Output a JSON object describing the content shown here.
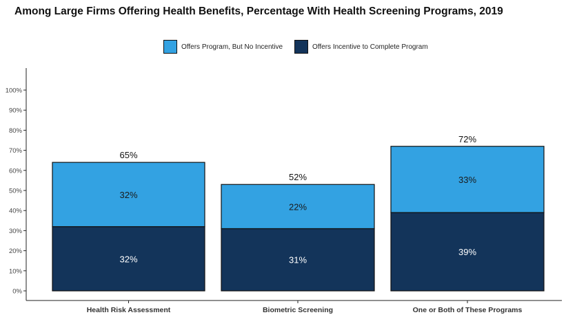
{
  "title": "Among Large Firms Offering Health Benefits, Percentage With Health Screening Programs, 2019",
  "colors": {
    "no_incentive": "#33a2e2",
    "incentive": "#13345a"
  },
  "chart_data": {
    "type": "bar",
    "stacked": true,
    "title": "Among Large Firms Offering Health Benefits, Percentage With Health Screening Programs, 2019",
    "categories": [
      "Health Risk Assessment",
      "Biometric Screening",
      "One or Both of These Programs"
    ],
    "series": [
      {
        "name": "Offers Incentive to Complete Program",
        "values": [
          32,
          31,
          39
        ],
        "labels": [
          "32%",
          "31%",
          "39%"
        ]
      },
      {
        "name": "Offers Program, But No Incentive",
        "values": [
          32,
          22,
          33
        ],
        "labels": [
          "32%",
          "22%",
          "33%"
        ]
      }
    ],
    "totals": [
      65,
      52,
      72
    ],
    "total_labels": [
      "65%",
      "52%",
      "72%"
    ],
    "ylim": [
      0,
      100
    ],
    "yticks": [
      "0%",
      "10%",
      "20%",
      "30%",
      "40%",
      "50%",
      "60%",
      "70%",
      "80%",
      "90%",
      "100%"
    ],
    "legend_position": "top-center",
    "grid": false
  },
  "legend": [
    {
      "label": "Offers Program, But No Incentive"
    },
    {
      "label": "Offers Incentive to Complete Program"
    }
  ]
}
